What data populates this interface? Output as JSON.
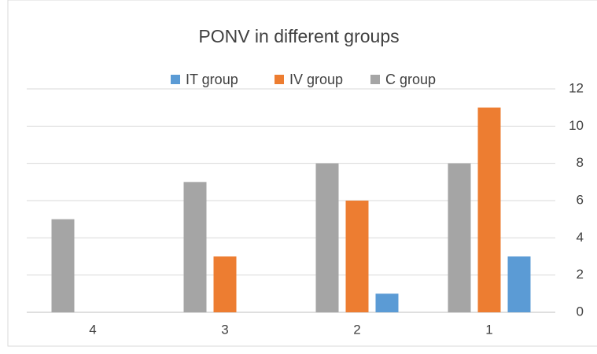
{
  "chart_data": {
    "type": "bar",
    "title": "PONV in different groups",
    "categories": [
      "4",
      "3",
      "2",
      "1"
    ],
    "series": [
      {
        "name": "IT group",
        "color": "#5b9bd5",
        "values": [
          0,
          0,
          1,
          3
        ]
      },
      {
        "name": "IV group",
        "color": "#ed7d31",
        "values": [
          0,
          3,
          6,
          11
        ]
      },
      {
        "name": "C group",
        "color": "#a5a5a5",
        "values": [
          5,
          7,
          8,
          8
        ]
      }
    ],
    "ylim": [
      0,
      12
    ],
    "yticks": [
      0,
      2,
      4,
      6,
      8,
      10,
      12
    ],
    "grid": true,
    "y_axis_side": "right",
    "legend": "top"
  }
}
